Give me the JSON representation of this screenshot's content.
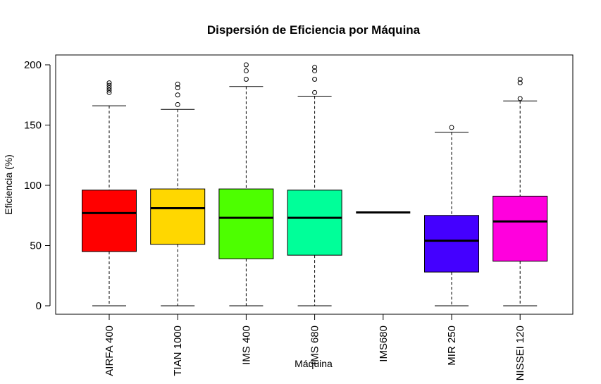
{
  "chart_data": {
    "type": "boxplot",
    "title": "Dispersión de Eficiencia por Máquina",
    "xlabel": "Máquina",
    "ylabel": "Eficiencia (%)",
    "ylim": [
      -8,
      206
    ],
    "yticks": [
      0,
      50,
      100,
      150,
      200
    ],
    "categories": [
      "AIRFA 400",
      "TIAN 1000",
      "IMS 400",
      "IMS 680",
      "IMS680",
      "MIR 250",
      "NISSEI 120"
    ],
    "colors": [
      "#FF0000",
      "#FFD700",
      "#4DFF00",
      "#00FF99",
      "#000000",
      "#4400FF",
      "#FF00DD"
    ],
    "boxes": [
      {
        "min": 0,
        "q1": 45,
        "median": 77,
        "q3": 96,
        "max": 166,
        "outliers": [
          177,
          179,
          181,
          183,
          185
        ]
      },
      {
        "min": 0,
        "q1": 51,
        "median": 81,
        "q3": 97,
        "max": 163,
        "outliers": [
          167,
          175,
          181,
          184
        ]
      },
      {
        "min": 0,
        "q1": 39,
        "median": 73,
        "q3": 97,
        "max": 182,
        "outliers": [
          188,
          195,
          200
        ]
      },
      {
        "min": 0,
        "q1": 42,
        "median": 73,
        "q3": 96,
        "max": 174,
        "outliers": [
          177,
          188,
          195,
          198
        ]
      },
      {
        "min": 77.5,
        "q1": 77.5,
        "median": 77.5,
        "q3": 77.5,
        "max": 77.5,
        "outliers": []
      },
      {
        "min": 0,
        "q1": 28,
        "median": 54,
        "q3": 75,
        "max": 144,
        "outliers": [
          148
        ]
      },
      {
        "min": 0,
        "q1": 37,
        "median": 70,
        "q3": 91,
        "max": 170,
        "outliers": [
          172,
          185,
          188
        ]
      }
    ]
  }
}
